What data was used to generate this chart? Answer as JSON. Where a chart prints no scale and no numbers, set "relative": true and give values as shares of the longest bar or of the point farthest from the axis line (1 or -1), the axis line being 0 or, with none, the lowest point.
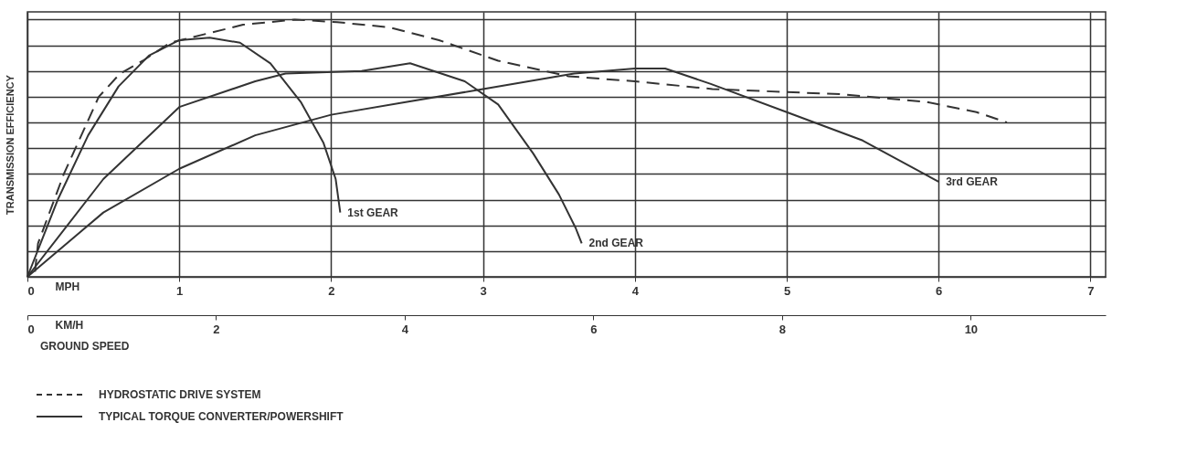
{
  "chart_data": {
    "type": "line",
    "relative": true,
    "ylabel": "TRANSMISSION EFFICIENCY",
    "xlabel": "MPH",
    "x2label": "KM/H",
    "xlim": [
      0,
      7.1
    ],
    "xticks": [
      0,
      1,
      2,
      3,
      4,
      5,
      6,
      7
    ],
    "x2lim": [
      0,
      11.43
    ],
    "x2ticks": [
      0,
      2,
      4,
      6,
      8,
      10
    ],
    "grid": true,
    "legend": "bottom left",
    "marker": "none",
    "annotations": [
      "GROUND SPEED",
      "TYPICAL TORQUE CONVERTER/POWERSHIFT"
    ],
    "series": [
      {
        "name": "HYDROSTATIC DRIVE SYSTEM",
        "color": "#333333",
        "line_style": "dashed",
        "x": [
          0.05,
          0.07,
          0.24,
          0.47,
          0.61,
          0.76,
          0.94,
          1.42,
          1.76,
          2.04,
          2.38,
          2.71,
          3.1,
          3.56,
          4.0,
          4.51,
          5.35,
          5.92,
          6.25,
          6.45
        ],
        "values": [
          0.02,
          0.13,
          0.4,
          0.7,
          0.79,
          0.84,
          0.91,
          0.98,
          1.0,
          0.99,
          0.97,
          0.92,
          0.84,
          0.78,
          0.76,
          0.73,
          0.71,
          0.68,
          0.64,
          0.6
        ]
      },
      {
        "name": "1st GEAR",
        "color": "#333333",
        "line_style": "solid",
        "x": [
          0,
          0.2,
          0.4,
          0.6,
          0.8,
          1.0,
          1.2,
          1.4,
          1.6,
          1.8,
          1.95,
          2.03,
          2.06
        ],
        "values": [
          0,
          0.3,
          0.55,
          0.74,
          0.86,
          0.92,
          0.93,
          0.91,
          0.83,
          0.68,
          0.52,
          0.38,
          0.25
        ]
      },
      {
        "name": "2nd GEAR",
        "color": "#333333",
        "line_style": "solid",
        "x": [
          0,
          0.5,
          1.0,
          1.5,
          1.7,
          2.2,
          2.52,
          2.88,
          3.1,
          3.33,
          3.5,
          3.61,
          3.65
        ],
        "values": [
          0,
          0.38,
          0.66,
          0.76,
          0.79,
          0.8,
          0.83,
          0.76,
          0.67,
          0.48,
          0.32,
          0.19,
          0.13
        ]
      },
      {
        "name": "3rd GEAR",
        "color": "#333333",
        "line_style": "solid",
        "x": [
          0,
          0.5,
          1,
          1.5,
          2,
          2.5,
          3,
          3.3,
          3.6,
          4,
          4.2,
          4.5,
          5,
          5.5,
          6
        ],
        "values": [
          0,
          0.25,
          0.42,
          0.55,
          0.63,
          0.68,
          0.73,
          0.76,
          0.79,
          0.81,
          0.81,
          0.75,
          0.64,
          0.53,
          0.37
        ]
      }
    ]
  }
}
